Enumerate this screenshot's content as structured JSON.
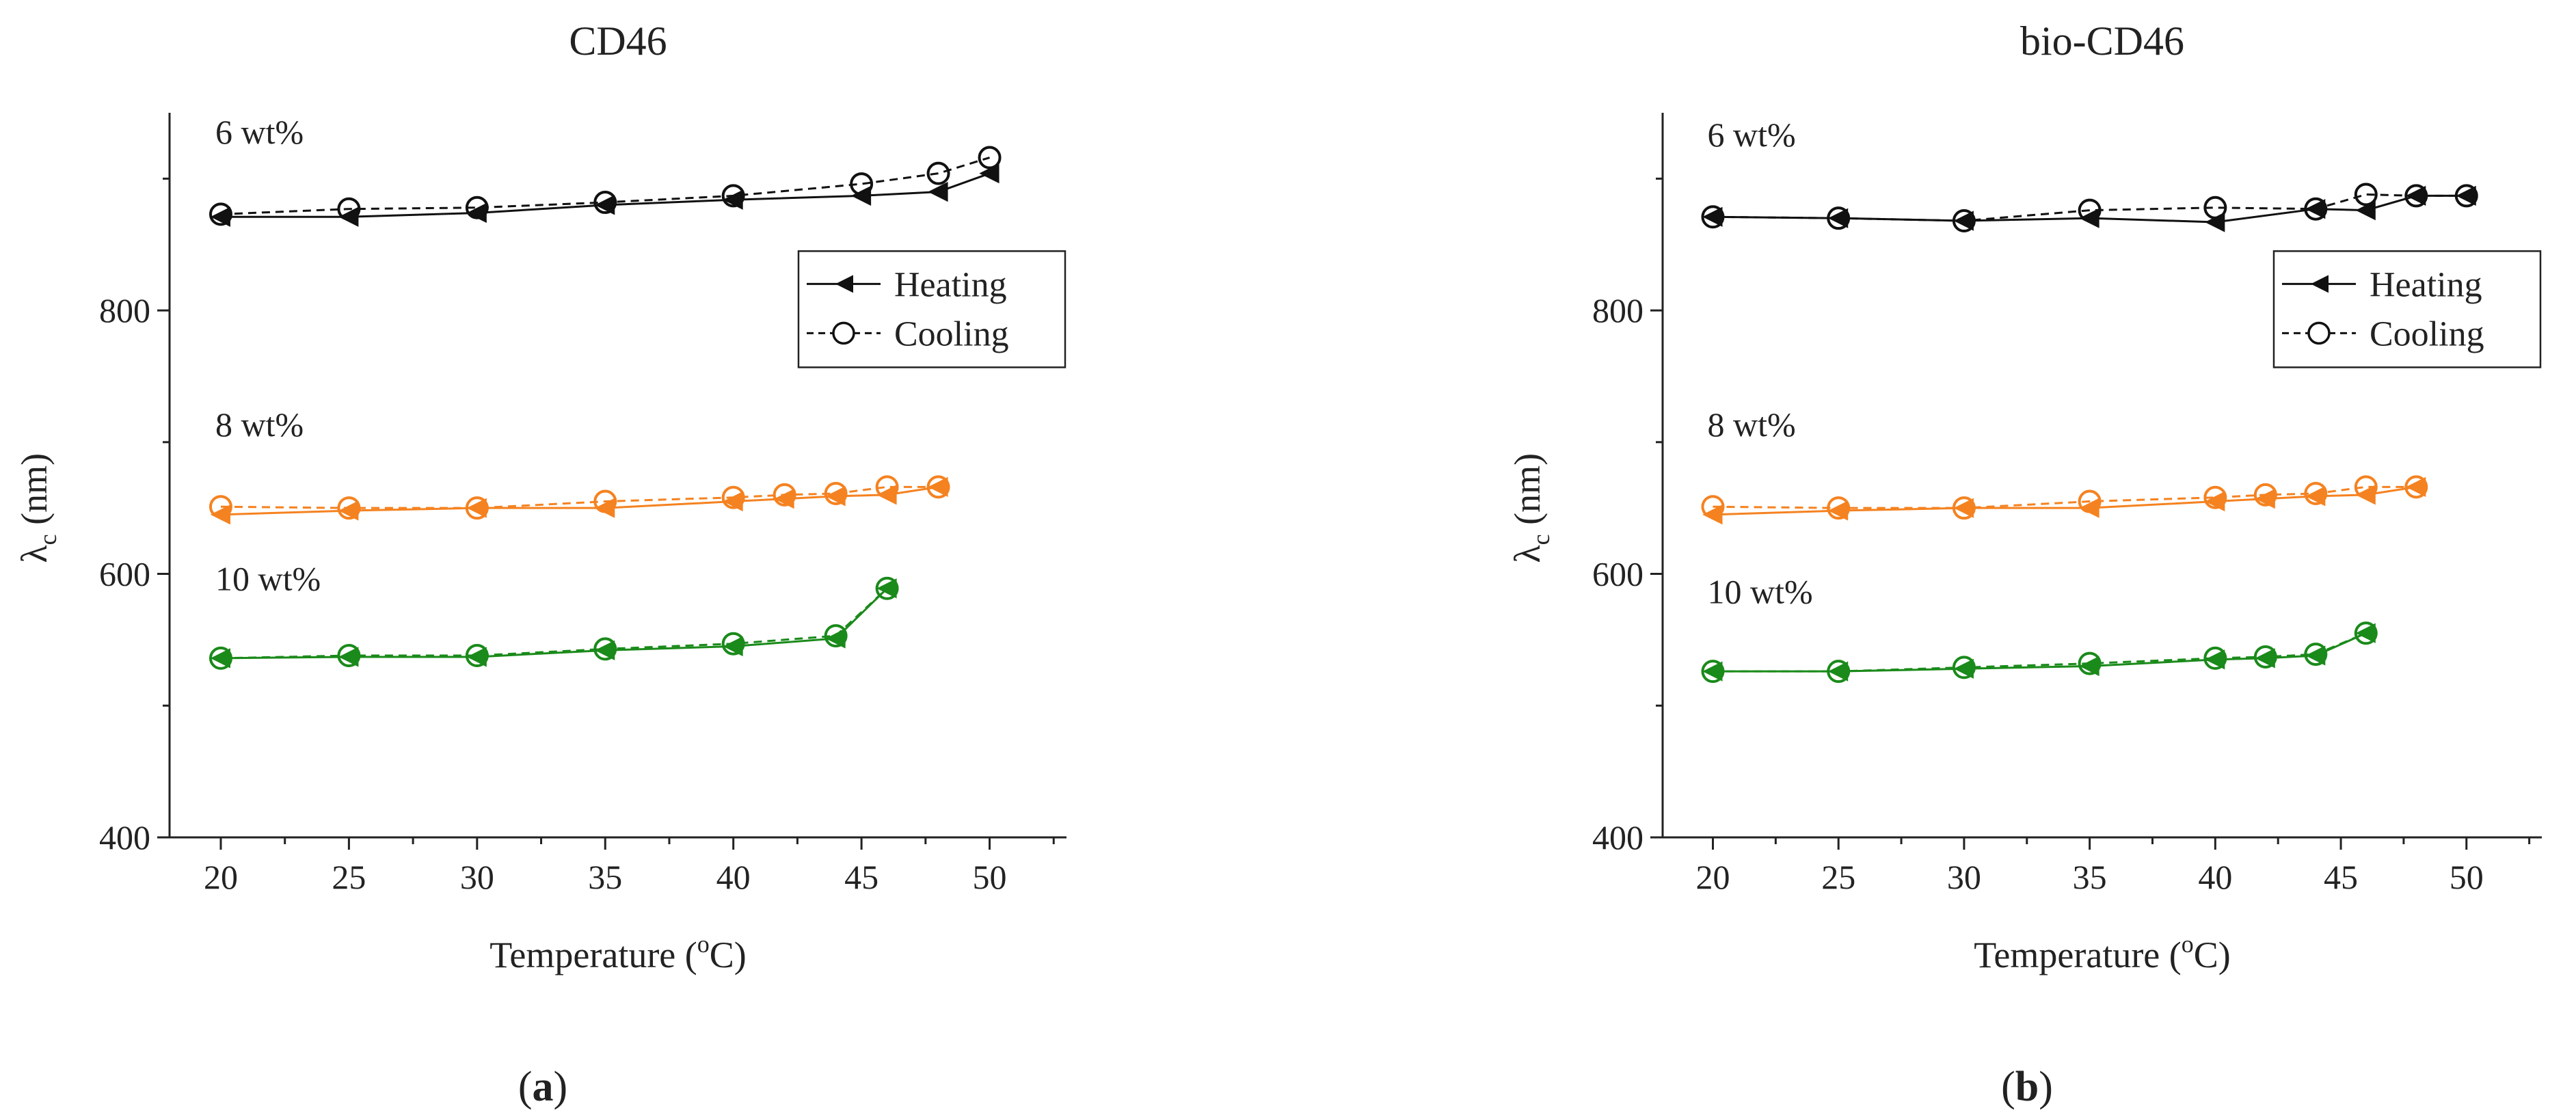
{
  "chart_data": [
    {
      "type": "line",
      "title": "CD46",
      "xlabel": "Temperature (oC)",
      "xlabel_parts": {
        "prefix": "Temperature (",
        "sup": "o",
        "suffix": "C)"
      },
      "ylabel": "λc (nm)",
      "ylabel_parts": {
        "symbol": "λ",
        "sub": "c",
        "unit": " (nm)"
      },
      "xlim": [
        18,
        53
      ],
      "ylim": [
        400,
        950
      ],
      "xticks": [
        20,
        25,
        30,
        35,
        40,
        45,
        50
      ],
      "yticks": [
        400,
        600,
        800
      ],
      "caption_letter": "a",
      "legend": {
        "placement": "upper-right",
        "entries": [
          "Heating",
          "Cooling"
        ]
      },
      "groups": [
        {
          "label": "6 wt%",
          "color": "#111111",
          "heating": {
            "x": [
              20,
              25,
              30,
              35,
              40,
              45,
              48,
              50
            ],
            "y": [
              871,
              871,
              874,
              880,
              884,
              887,
              890,
              904
            ]
          },
          "cooling": {
            "x": [
              20,
              25,
              30,
              35,
              40,
              45,
              48,
              50
            ],
            "y": [
              873,
              877,
              878,
              882,
              887,
              896,
              904,
              916
            ]
          }
        },
        {
          "label": "8 wt%",
          "color": "#f58220",
          "heating": {
            "x": [
              20,
              25,
              30,
              35,
              40,
              42,
              44,
              46,
              48
            ],
            "y": [
              645,
              648,
              650,
              650,
              655,
              657,
              659,
              660,
              666
            ]
          },
          "cooling": {
            "x": [
              20,
              25,
              30,
              35,
              40,
              42,
              44,
              46,
              48
            ],
            "y": [
              651,
              650,
              650,
              655,
              658,
              660,
              661,
              666,
              666
            ]
          }
        },
        {
          "label": "10 wt%",
          "color": "#1a8a1a",
          "heating": {
            "x": [
              20,
              25,
              30,
              35,
              40,
              44,
              46
            ],
            "y": [
              536,
              537,
              537,
              542,
              545,
              551,
              589
            ]
          },
          "cooling": {
            "x": [
              20,
              25,
              30,
              35,
              40,
              44,
              46
            ],
            "y": [
              536,
              538,
              538,
              543,
              547,
              553,
              589
            ]
          }
        }
      ]
    },
    {
      "type": "line",
      "title": "bio-CD46",
      "xlabel": "Temperature (oC)",
      "xlabel_parts": {
        "prefix": "Temperature (",
        "sup": "o",
        "suffix": "C)"
      },
      "ylabel": "λc (nm)",
      "ylabel_parts": {
        "symbol": "λ",
        "sub": "c",
        "unit": " (nm)"
      },
      "xlim": [
        18,
        53
      ],
      "ylim": [
        400,
        950
      ],
      "xticks": [
        20,
        25,
        30,
        35,
        40,
        45,
        50
      ],
      "yticks": [
        400,
        600,
        800
      ],
      "caption_letter": "b",
      "legend": {
        "placement": "upper-right",
        "entries": [
          "Heating",
          "Cooling"
        ]
      },
      "groups": [
        {
          "label": "6 wt%",
          "color": "#111111",
          "heating": {
            "x": [
              20,
              25,
              30,
              35,
              40,
              44,
              46,
              48,
              50
            ],
            "y": [
              871,
              870,
              868,
              870,
              867,
              877,
              876,
              887,
              887
            ]
          },
          "cooling": {
            "x": [
              20,
              25,
              30,
              35,
              40,
              44,
              46,
              48,
              50
            ],
            "y": [
              871,
              870,
              868,
              876,
              878,
              877,
              888,
              887,
              887
            ]
          }
        },
        {
          "label": "8 wt%",
          "color": "#f58220",
          "heating": {
            "x": [
              20,
              25,
              30,
              35,
              40,
              42,
              44,
              46,
              48
            ],
            "y": [
              645,
              648,
              650,
              650,
              655,
              657,
              659,
              660,
              666
            ]
          },
          "cooling": {
            "x": [
              20,
              25,
              30,
              35,
              40,
              42,
              44,
              46,
              48
            ],
            "y": [
              651,
              650,
              650,
              655,
              658,
              660,
              661,
              666,
              666
            ]
          }
        },
        {
          "label": "10 wt%",
          "color": "#1a8a1a",
          "heating": {
            "x": [
              20,
              25,
              30,
              35,
              40,
              42,
              44,
              46
            ],
            "y": [
              526,
              526,
              528,
              530,
              535,
              536,
              538,
              555
            ]
          },
          "cooling": {
            "x": [
              20,
              25,
              30,
              35,
              40,
              42,
              44,
              46
            ],
            "y": [
              526,
              526,
              529,
              532,
              536,
              537,
              539,
              555
            ]
          }
        }
      ]
    }
  ]
}
